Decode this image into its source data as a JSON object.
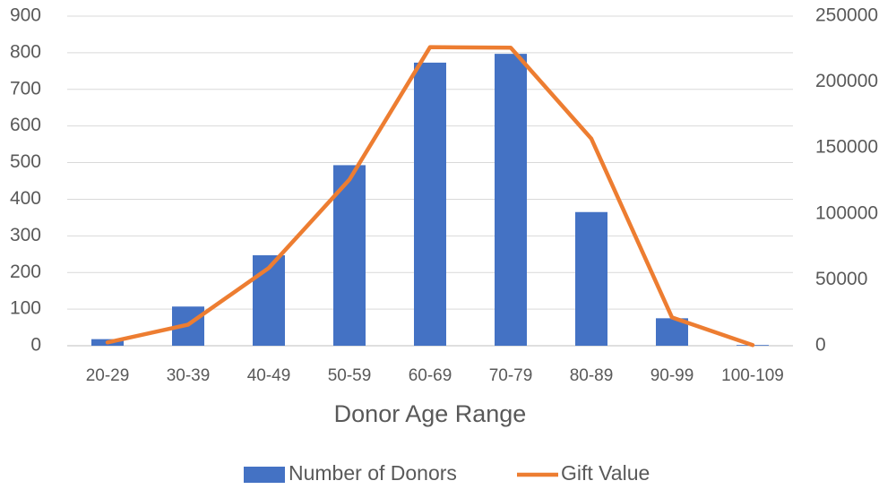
{
  "chart_data": {
    "type": "bar",
    "title": "",
    "xlabel": "Donor Age Range",
    "ylabel": "",
    "categories": [
      "20-29",
      "30-39",
      "40-49",
      "50-59",
      "60-69",
      "70-79",
      "80-89",
      "90-99",
      "100-109"
    ],
    "series": [
      {
        "name": "Number of Donors",
        "type": "bar",
        "axis": "left",
        "color": "#4472C4",
        "values": [
          18,
          107,
          247,
          493,
          773,
          797,
          365,
          75,
          2
        ]
      },
      {
        "name": "Gift Value",
        "type": "line",
        "axis": "right",
        "color": "#ED7D31",
        "values": [
          2500,
          16000,
          59000,
          126000,
          226500,
          226000,
          157000,
          21500,
          500
        ]
      }
    ],
    "ylim_left": [
      0,
      900
    ],
    "yticks_left": [
      0,
      100,
      200,
      300,
      400,
      500,
      600,
      700,
      800,
      900
    ],
    "ylim_right": [
      0,
      250000
    ],
    "yticks_right": [
      0,
      50000,
      100000,
      150000,
      200000,
      250000
    ],
    "grid": true,
    "legend_position": "bottom"
  }
}
